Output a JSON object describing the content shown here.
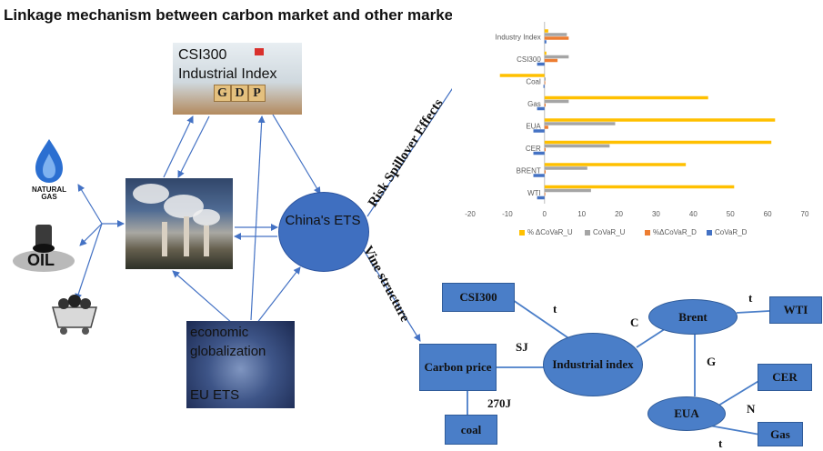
{
  "title": "Linkage mechanism between carbon market and other markets:",
  "csi_card": {
    "line1": "CSI300",
    "line2": "Industrial Index",
    "cubes": [
      "G",
      "D",
      "P"
    ]
  },
  "globalization_card": {
    "line1": "economic globalization",
    "line2": "EU ETS"
  },
  "icons": {
    "gas": {
      "name": "natural-gas-icon",
      "caption": "NATURAL GAS"
    },
    "oil": {
      "name": "oil-icon",
      "caption": "OIL"
    },
    "coal": {
      "name": "coal-cart-icon"
    },
    "factory": {
      "name": "factory-photo"
    }
  },
  "center_node": {
    "label": "China's ETS"
  },
  "rotated_labels": {
    "risk": "Risk Spillover Effects",
    "vine": "Vine structure"
  },
  "chart_data": {
    "type": "bar",
    "orientation": "horizontal",
    "categories": [
      "Industry Index",
      "CSI300",
      "Coal",
      "Gas",
      "EUA",
      "CER",
      "BRENT",
      "WTI"
    ],
    "series": [
      {
        "name": "% ΔCoVaR_U",
        "color": "#FFC000",
        "values": [
          1,
          0.5,
          -12,
          44,
          62,
          61,
          38,
          51
        ]
      },
      {
        "name": "CoVaR_U",
        "color": "#A5A5A5",
        "values": [
          6,
          6.5,
          0.3,
          6.5,
          19,
          17.5,
          11.5,
          12.5
        ]
      },
      {
        "name": "%ΔCoVaR_D",
        "color": "#ED7D31",
        "values": [
          6.5,
          3.5,
          0.2,
          0.3,
          1,
          0.3,
          0.3,
          0.2
        ]
      },
      {
        "name": "CoVaR_D",
        "color": "#4472C4",
        "values": [
          0.5,
          -2,
          -0.3,
          -2,
          -3,
          -3,
          -3,
          -2
        ]
      }
    ],
    "xticks": [
      "-20",
      "-10",
      "0",
      "10",
      "20",
      "30",
      "40",
      "50",
      "60",
      "70"
    ],
    "xlim": [
      -20,
      70
    ],
    "legend_position": "bottom",
    "grid": false
  },
  "vine": {
    "nodes": {
      "csi300": "CSI300",
      "carbon": "Carbon price",
      "coal": "coal",
      "industrial": "Industrial index",
      "brent": "Brent",
      "wti": "WTI",
      "eua": "EUA",
      "cer": "CER",
      "gas": "Gas"
    },
    "edges": {
      "csi_ind": "t",
      "carbon_ind": "SJ",
      "carbon_coal": "270J",
      "ind_brent": "C",
      "brent_wti": "t",
      "brent_eua": "G",
      "eua_cer": "N",
      "eua_gas": "t"
    }
  }
}
